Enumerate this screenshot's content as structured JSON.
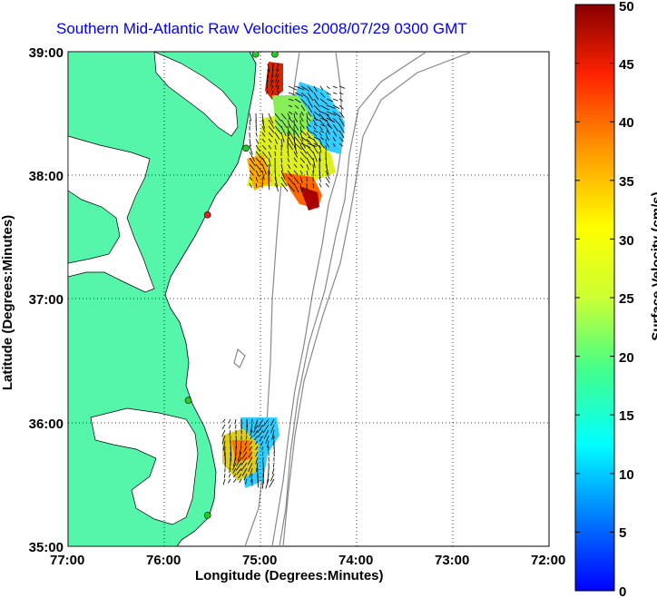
{
  "title": "Southern Mid-Atlantic Raw Velocities 2008/07/29 0300 GMT",
  "xlabel": "Longitude (Degrees:Minutes)",
  "ylabel": "Latitude (Degrees:Minutes)",
  "colorbar": {
    "label": "Surface Velocity (cm/s)",
    "range": [
      0,
      50
    ],
    "ticks": [
      "0",
      "5",
      "10",
      "15",
      "20",
      "25",
      "30",
      "35",
      "40",
      "45",
      "50"
    ]
  },
  "map": {
    "x_ticks": [
      "77:00",
      "76:00",
      "75:00",
      "74:00",
      "73:00",
      "72:00"
    ],
    "y_ticks": [
      "39:00",
      "38:00",
      "37:00",
      "36:00",
      "35:00"
    ],
    "lon_range": [
      -77,
      -72
    ],
    "lat_range": [
      35,
      39
    ],
    "land_color": "#55f5aa",
    "grid": "dotted",
    "stations": [
      {
        "lon": -74.85,
        "lat": 38.98,
        "color": "#22cc22"
      },
      {
        "lon": -75.05,
        "lat": 38.98,
        "color": "#22cc22"
      },
      {
        "lon": -75.15,
        "lat": 38.22,
        "color": "#22cc22"
      },
      {
        "lon": -75.55,
        "lat": 37.68,
        "color": "#dd2222"
      },
      {
        "lon": -75.75,
        "lat": 36.18,
        "color": "#22cc22"
      },
      {
        "lon": -75.55,
        "lat": 35.25,
        "color": "#22cc22"
      }
    ]
  }
}
